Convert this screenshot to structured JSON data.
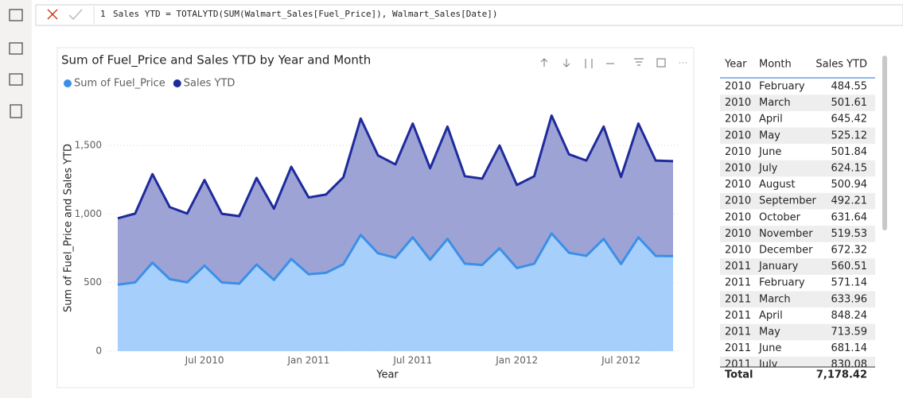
{
  "formula_bar": {
    "line_number": "1",
    "formula": "Sales YTD = TOTALYTD(SUM(Walmart_Sales[Fuel_Price]), Walmart_Sales[Date])"
  },
  "chart_data": {
    "type": "area",
    "stacked": true,
    "title": "Sum of Fuel_Price and Sales YTD by Year and Month",
    "x_label": "Year",
    "y_label": "Sum of Fuel_Price and Sales YTD",
    "categories": [
      null,
      null,
      null,
      null,
      null,
      "Jul 2010",
      null,
      null,
      null,
      null,
      null,
      "Jan 2011",
      null,
      null,
      null,
      null,
      null,
      "Jul 2011",
      null,
      null,
      null,
      null,
      null,
      "Jan 2012",
      null,
      null,
      null,
      null,
      null,
      "Jul 2012",
      null,
      null,
      null
    ],
    "series": [
      {
        "name": "Sum of Fuel_Price",
        "color": "#3b8fe8",
        "fill": "#a7cffb",
        "values": [
          484.55,
          501.61,
          645.42,
          525.12,
          501.84,
          624.15,
          500.94,
          492.21,
          631.64,
          519.53,
          672.32,
          560.51,
          571.14,
          633.96,
          848.24,
          713.59,
          681.14,
          830.08,
          667,
          819,
          638,
          629,
          750,
          606,
          638,
          859,
          718,
          695,
          819,
          635,
          830,
          695,
          693
        ]
      },
      {
        "name": "Sales YTD",
        "color": "#1e2b9c",
        "fill": "#9ea3d6",
        "values": [
          484.55,
          501.61,
          645.42,
          525.12,
          501.84,
          624.15,
          500.94,
          492.21,
          631.64,
          519.53,
          672.32,
          560.51,
          571.14,
          633.96,
          848.24,
          713.59,
          681.14,
          830.08,
          667,
          819,
          638,
          629,
          750,
          606,
          638,
          859,
          718,
          695,
          819,
          635,
          830,
          695,
          693
        ]
      }
    ],
    "ylim": [
      0,
      1750
    ],
    "yticks": [
      0,
      500,
      {
        "value": 1000,
        "label": "1,000"
      },
      {
        "value": 1500,
        "label": "1,500"
      }
    ],
    "grid": true,
    "legend": "top-left"
  },
  "table": {
    "columns": [
      "Year",
      "Month",
      "Sales YTD"
    ],
    "rows": [
      [
        "2010",
        "February",
        "484.55"
      ],
      [
        "2010",
        "March",
        "501.61"
      ],
      [
        "2010",
        "April",
        "645.42"
      ],
      [
        "2010",
        "May",
        "525.12"
      ],
      [
        "2010",
        "June",
        "501.84"
      ],
      [
        "2010",
        "July",
        "624.15"
      ],
      [
        "2010",
        "August",
        "500.94"
      ],
      [
        "2010",
        "September",
        "492.21"
      ],
      [
        "2010",
        "October",
        "631.64"
      ],
      [
        "2010",
        "November",
        "519.53"
      ],
      [
        "2010",
        "December",
        "672.32"
      ],
      [
        "2011",
        "January",
        "560.51"
      ],
      [
        "2011",
        "February",
        "571.14"
      ],
      [
        "2011",
        "March",
        "633.96"
      ],
      [
        "2011",
        "April",
        "848.24"
      ],
      [
        "2011",
        "May",
        "713.59"
      ],
      [
        "2011",
        "June",
        "681.14"
      ],
      [
        "2011",
        "July",
        "830.08"
      ]
    ],
    "total_label": "Total",
    "total": "7,178.42"
  }
}
